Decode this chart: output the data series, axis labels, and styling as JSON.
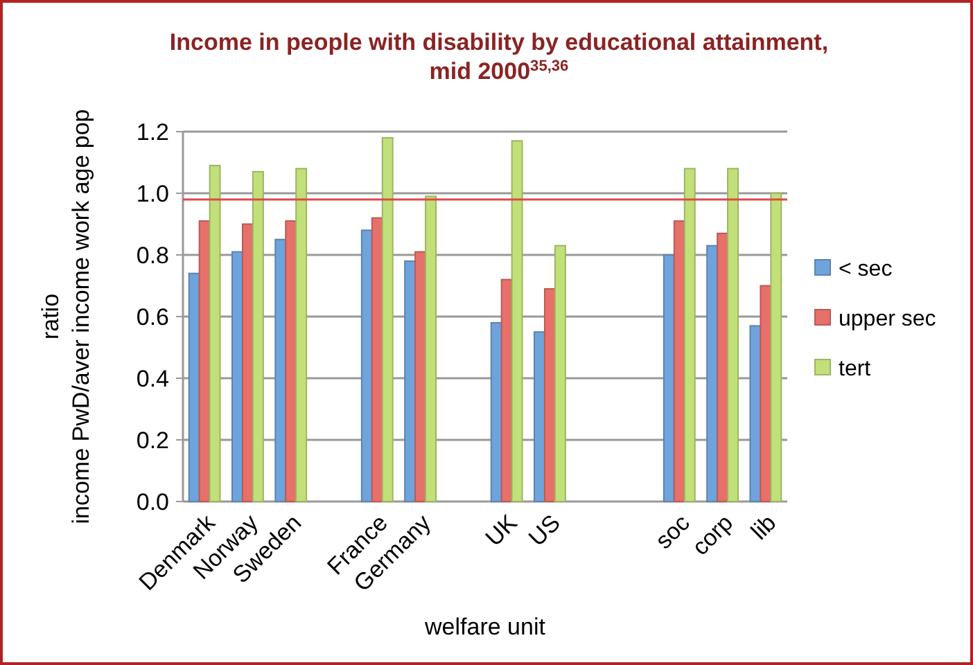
{
  "chart_data": {
    "type": "bar",
    "title": "Income in people with disability by educational attainment,\nmid 2000$^{35,36}$",
    "xlabel": "welfare unit",
    "ylabel": "ratio\nincome PwD/aver income work age pop",
    "categories": [
      "Denmark",
      "Norway",
      "Sweden",
      null,
      "France",
      "Germany",
      null,
      "UK",
      "US",
      null,
      null,
      "soc",
      "corp",
      "lib"
    ],
    "series": [
      {
        "name": "< sec",
        "color": "#6fa3dc",
        "values": [
          0.74,
          0.81,
          0.85,
          null,
          0.88,
          0.78,
          null,
          0.58,
          0.55,
          null,
          null,
          0.8,
          0.83,
          0.57
        ]
      },
      {
        "name": "upper sec",
        "color": "#e8706a",
        "values": [
          0.91,
          0.9,
          0.91,
          null,
          0.92,
          0.81,
          null,
          0.72,
          0.69,
          null,
          null,
          0.91,
          0.87,
          0.7
        ]
      },
      {
        "name": "tert",
        "color": "#c2e07a",
        "values": [
          1.09,
          1.07,
          1.08,
          null,
          1.18,
          0.99,
          null,
          1.17,
          0.83,
          null,
          null,
          1.08,
          1.08,
          1.0
        ]
      }
    ],
    "ylim": [
      0,
      1.2
    ],
    "yticks": [
      {
        "value": 0,
        "label": "0.0"
      },
      {
        "value": 0.2,
        "label": "0.2"
      },
      {
        "value": 0.4,
        "label": "0.4"
      },
      {
        "value": 0.6,
        "label": "0.6"
      },
      {
        "value": 0.8,
        "label": "0.8"
      },
      {
        "value": 1,
        "label": "1.0"
      },
      {
        "value": 1.2,
        "label": "1.2"
      }
    ],
    "grid": "y",
    "legend": "right",
    "ref_lines": [
      {
        "axis": "y",
        "value": 0.98,
        "color": "#e04848"
      }
    ]
  }
}
